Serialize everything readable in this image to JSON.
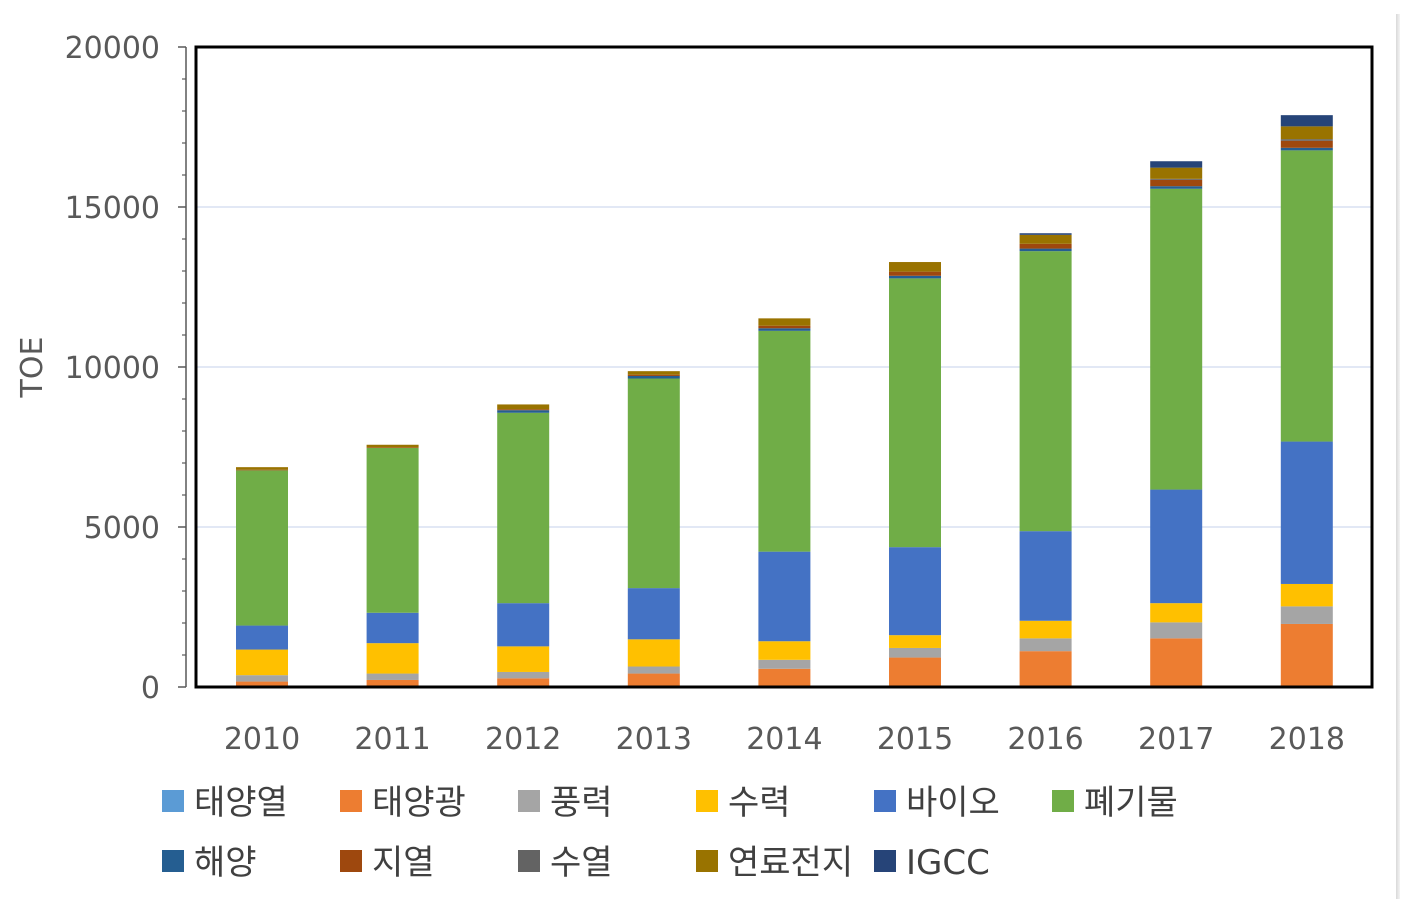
{
  "chart_data": {
    "type": "bar",
    "stacked": true,
    "title": "",
    "xlabel": "",
    "ylabel": "TOE",
    "ylim": [
      0,
      20000
    ],
    "yticks": [
      0,
      5000,
      10000,
      15000,
      20000
    ],
    "grid": true,
    "legend_position": "bottom",
    "categories": [
      "2010",
      "2011",
      "2012",
      "2013",
      "2014",
      "2015",
      "2016",
      "2017",
      "2018"
    ],
    "series": [
      {
        "name": "태양열",
        "color": "#5b9bd5",
        "values": [
          20,
          20,
          20,
          20,
          20,
          20,
          20,
          20,
          20
        ]
      },
      {
        "name": "태양광",
        "color": "#ed7d31",
        "values": [
          150,
          200,
          250,
          400,
          550,
          900,
          1100,
          1500,
          1950
        ]
      },
      {
        "name": "풍력",
        "color": "#a5a5a5",
        "values": [
          200,
          200,
          200,
          220,
          280,
          300,
          400,
          500,
          550
        ]
      },
      {
        "name": "수력",
        "color": "#ffc000",
        "values": [
          800,
          950,
          800,
          850,
          580,
          400,
          550,
          600,
          700
        ]
      },
      {
        "name": "바이오",
        "color": "#4472c4",
        "values": [
          750,
          950,
          1350,
          1600,
          2800,
          2750,
          2800,
          3550,
          4450
        ]
      },
      {
        "name": "폐기물",
        "color": "#70ad47",
        "values": [
          4850,
          5150,
          5950,
          6550,
          6900,
          8400,
          8750,
          9400,
          9100
        ]
      },
      {
        "name": "해양",
        "color": "#255e91",
        "values": [
          0,
          0,
          80,
          80,
          80,
          80,
          80,
          80,
          80
        ]
      },
      {
        "name": "지열",
        "color": "#9e480e",
        "values": [
          20,
          20,
          30,
          40,
          80,
          130,
          150,
          200,
          220
        ]
      },
      {
        "name": "수열",
        "color": "#636363",
        "values": [
          0,
          0,
          0,
          0,
          0,
          0,
          0,
          30,
          50
        ]
      },
      {
        "name": "연료전지",
        "color": "#997300",
        "values": [
          80,
          80,
          150,
          110,
          230,
          300,
          280,
          350,
          400
        ]
      },
      {
        "name": "IGCC",
        "color": "#264478",
        "values": [
          0,
          0,
          0,
          0,
          0,
          0,
          50,
          200,
          350
        ]
      }
    ]
  }
}
